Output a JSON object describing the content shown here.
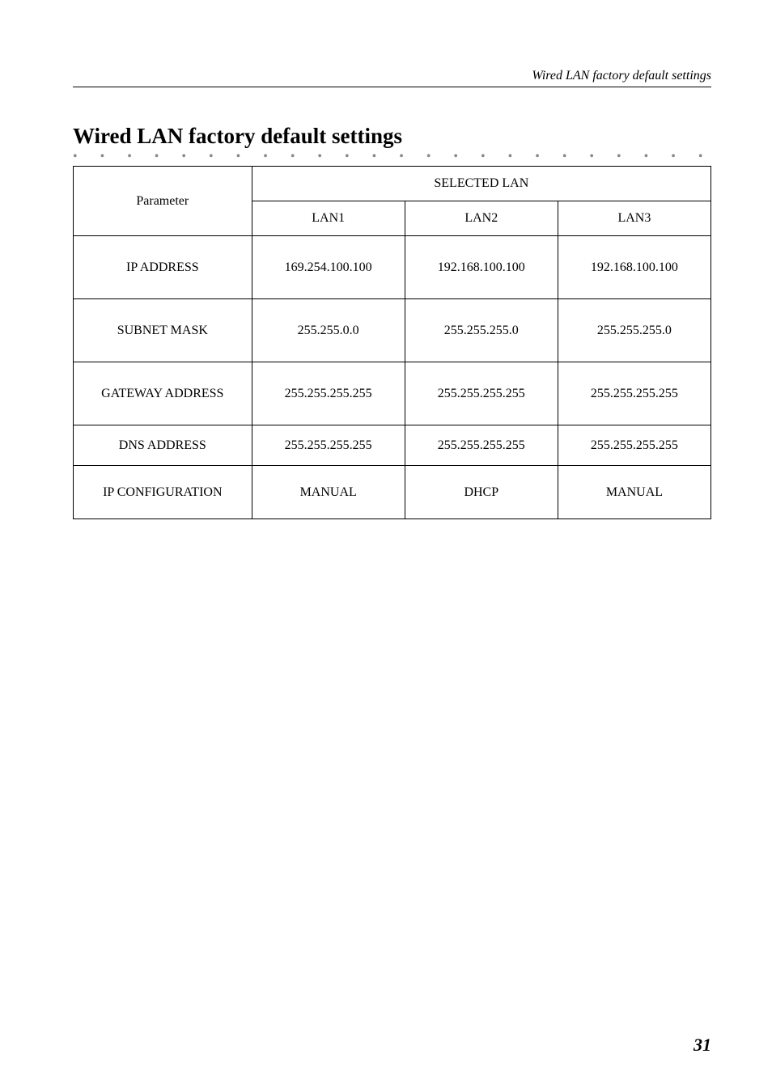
{
  "header": {
    "running_title": "Wired LAN factory default settings"
  },
  "section": {
    "title": "Wired LAN factory default settings"
  },
  "table": {
    "param_header": "Parameter",
    "selected_lan_header": "SELECTED LAN",
    "columns": {
      "lan1": "LAN1",
      "lan2": "LAN2",
      "lan3": "LAN3"
    },
    "rows": {
      "ip_address": {
        "label": "IP ADDRESS",
        "lan1": "169.254.100.100",
        "lan2": "192.168.100.100",
        "lan3": "192.168.100.100"
      },
      "subnet_mask": {
        "label": "SUBNET MASK",
        "lan1": "255.255.0.0",
        "lan2": "255.255.255.0",
        "lan3": "255.255.255.0"
      },
      "gateway_address": {
        "label": "GATEWAY ADDRESS",
        "lan1": "255.255.255.255",
        "lan2": "255.255.255.255",
        "lan3": "255.255.255.255"
      },
      "dns_address": {
        "label": "DNS ADDRESS",
        "lan1": "255.255.255.255",
        "lan2": "255.255.255.255",
        "lan3": "255.255.255.255"
      },
      "ip_configuration": {
        "label": "IP CONFIGURATION",
        "lan1": "MANUAL",
        "lan2": "DHCP",
        "lan3": "MANUAL"
      }
    }
  },
  "footer": {
    "page_number": "31"
  }
}
